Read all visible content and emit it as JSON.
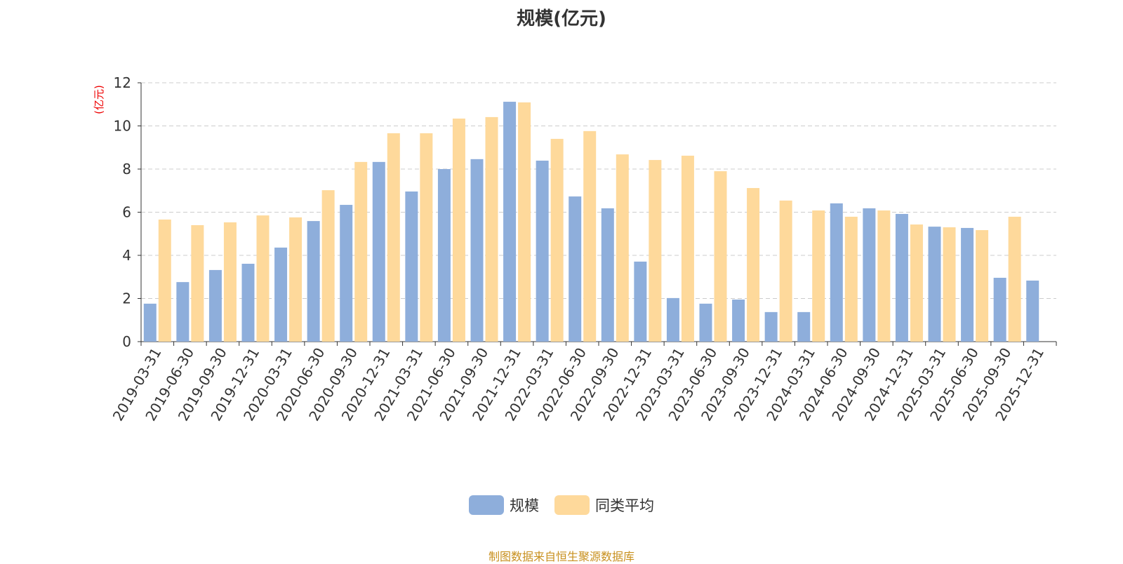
{
  "chart_data": {
    "type": "bar",
    "title": "规模(亿元)",
    "ylabel": "(亿元)",
    "xlabel": "",
    "ylim": [
      0,
      12
    ],
    "yticks": [
      0,
      2,
      4,
      6,
      8,
      10,
      12
    ],
    "grid": true,
    "legend_position": "bottom",
    "categories": [
      "2019-03-31",
      "2019-06-30",
      "2019-09-30",
      "2019-12-31",
      "2020-03-31",
      "2020-06-30",
      "2020-09-30",
      "2020-12-31",
      "2021-03-31",
      "2021-06-30",
      "2021-09-30",
      "2021-12-31",
      "2022-03-31",
      "2022-06-30",
      "2022-09-30",
      "2022-12-31",
      "2023-03-31",
      "2023-06-30",
      "2023-09-30",
      "2023-12-31",
      "2024-03-31",
      "2024-06-30",
      "2024-09-30",
      "2024-12-31",
      "2025-03-31",
      "2025-06-30",
      "2025-09-30",
      "2025-12-31"
    ],
    "series": [
      {
        "name": "规模",
        "color": "#8eaedb",
        "values": [
          1.76,
          2.76,
          3.32,
          3.61,
          4.36,
          5.59,
          6.34,
          8.33,
          6.96,
          8.0,
          8.46,
          11.12,
          8.39,
          6.73,
          6.18,
          3.71,
          2.02,
          1.76,
          1.95,
          1.37,
          1.37,
          6.41,
          6.18,
          5.92,
          5.33,
          5.27,
          2.96,
          2.83
        ]
      },
      {
        "name": "同类平均",
        "color": "#fed99b",
        "values": [
          5.66,
          5.4,
          5.53,
          5.85,
          5.76,
          7.02,
          8.33,
          9.66,
          9.66,
          10.34,
          10.41,
          11.09,
          9.4,
          9.76,
          8.68,
          8.42,
          8.62,
          7.9,
          7.12,
          6.54,
          6.08,
          5.79,
          6.08,
          5.43,
          5.3,
          5.17,
          5.79,
          null
        ]
      }
    ]
  },
  "footer": "制图数据来自恒生聚源数据库"
}
